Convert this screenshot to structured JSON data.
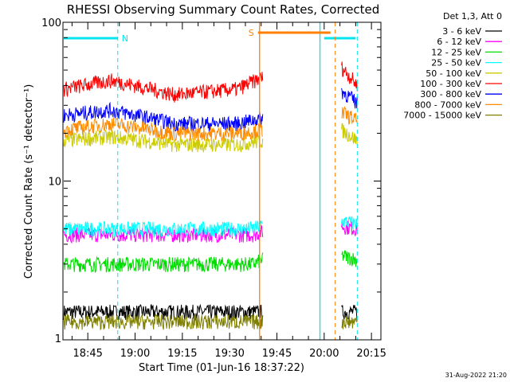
{
  "chart_data": {
    "type": "line",
    "title": "RHESSI Observing Summary Count Rates, Corrected",
    "xlabel": "Start Time (01-Jun-16 18:37:22)",
    "ylabel": "Corrected Count Rate (s⁻¹ detector⁻¹)",
    "yscale": "log",
    "ylim": [
      1,
      100
    ],
    "xlim": [
      "18:37:22",
      "20:18:00"
    ],
    "x_ticks": [
      "18:45",
      "19:00",
      "19:15",
      "19:30",
      "19:45",
      "20:00",
      "20:15"
    ],
    "y_ticks": [
      "1",
      "10",
      "100"
    ],
    "legend_title": "Det 1,3, Att 0",
    "legend_position": "right",
    "gaps": [
      [
        "19:40:30",
        "20:05:30"
      ]
    ],
    "annotations": [
      {
        "label": "N",
        "color": "#00e5ee",
        "bar": [
          "18:37:22",
          "18:54:30"
        ],
        "marker": "18:54:30",
        "bar2": [
          "20:00:00",
          "20:10:00"
        ],
        "marker2": "20:10:30"
      },
      {
        "label": "S",
        "color": "#ff7f00",
        "bar": [
          "19:39:00",
          "20:02:00"
        ],
        "marker": "20:03:30"
      }
    ],
    "vertical_lines": [
      {
        "x": "19:39:30",
        "color": "#ff7f00"
      },
      {
        "x": "19:58:40",
        "color": "#00e5ee"
      }
    ],
    "series": [
      {
        "name": "3 - 6 keV",
        "color": "#000000",
        "seg1": [
          [
            0,
            1.5
          ],
          [
            60,
            1.5
          ],
          [
            63,
            1.5
          ]
        ],
        "seg2": [
          [
            88,
            1.5
          ],
          [
            99,
            1.5
          ]
        ]
      },
      {
        "name": "6 - 12 keV",
        "color": "#ff00ff",
        "seg1": [
          [
            0,
            4.6
          ],
          [
            60,
            4.6
          ],
          [
            63,
            4.8
          ]
        ],
        "seg2": [
          [
            88,
            5.2
          ],
          [
            99,
            5.0
          ]
        ]
      },
      {
        "name": "12 - 25 keV",
        "color": "#00dd00",
        "seg1": [
          [
            0,
            3.0
          ],
          [
            60,
            3.0
          ],
          [
            63,
            3.2
          ]
        ],
        "seg2": [
          [
            88,
            3.4
          ],
          [
            99,
            3.2
          ]
        ]
      },
      {
        "name": "25 - 50 keV",
        "color": "#00ffff",
        "seg1": [
          [
            0,
            5.0
          ],
          [
            60,
            5.0
          ],
          [
            63,
            5.3
          ]
        ],
        "seg2": [
          [
            88,
            5.6
          ],
          [
            99,
            5.4
          ]
        ]
      },
      {
        "name": "50 - 100 keV",
        "color": "#cccc00",
        "seg1": [
          [
            0,
            18
          ],
          [
            15,
            19
          ],
          [
            35,
            17
          ],
          [
            55,
            17
          ],
          [
            63,
            18
          ]
        ],
        "seg2": [
          [
            88,
            21
          ],
          [
            99,
            18
          ]
        ]
      },
      {
        "name": "100 - 300 keV",
        "color": "#ff0000",
        "seg1": [
          [
            0,
            38
          ],
          [
            15,
            43
          ],
          [
            35,
            35
          ],
          [
            55,
            38
          ],
          [
            63,
            45
          ]
        ],
        "seg2": [
          [
            88,
            52
          ],
          [
            99,
            40
          ]
        ]
      },
      {
        "name": "300 - 800 keV",
        "color": "#0000ff",
        "seg1": [
          [
            0,
            26
          ],
          [
            15,
            28
          ],
          [
            35,
            23
          ],
          [
            55,
            23
          ],
          [
            63,
            25
          ]
        ],
        "seg2": [
          [
            88,
            37
          ],
          [
            99,
            31
          ]
        ]
      },
      {
        "name": "800 - 7000 keV",
        "color": "#ff8c00",
        "seg1": [
          [
            0,
            21
          ],
          [
            15,
            23
          ],
          [
            35,
            20
          ],
          [
            55,
            20
          ],
          [
            63,
            21
          ]
        ],
        "seg2": [
          [
            88,
            27
          ],
          [
            99,
            24
          ]
        ]
      },
      {
        "name": "7000 - 15000 keV",
        "color": "#808000",
        "seg1": [
          [
            0,
            1.3
          ],
          [
            60,
            1.3
          ],
          [
            63,
            1.3
          ]
        ],
        "seg2": [
          [
            88,
            1.3
          ],
          [
            99,
            1.3
          ]
        ]
      }
    ]
  },
  "timestamp": "31-Aug-2022 21:20"
}
